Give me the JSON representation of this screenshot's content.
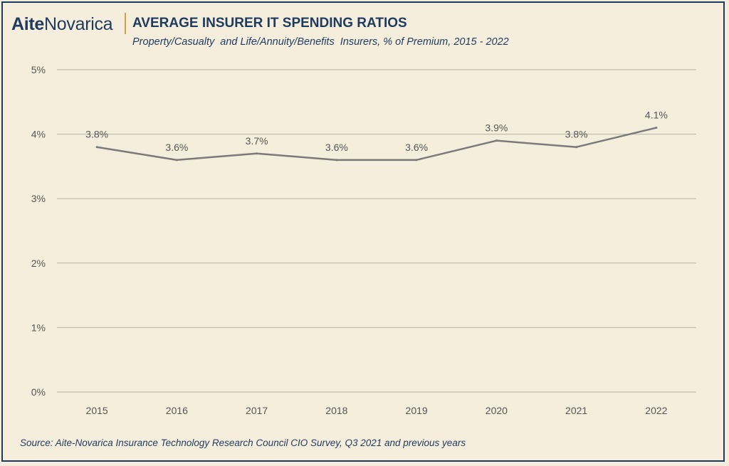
{
  "brand": {
    "part1": "Aite",
    "part2": "Novarica"
  },
  "header": {
    "title": "AVERAGE INSURER IT SPENDING RATIOS",
    "subtitle": "Property/Casualty  and Life/Annuity/Benefits  Insurers, % of Premium, 2015 - 2022"
  },
  "footer": {
    "source": "Source: Aite-Novarica Insurance Technology Research Council CIO Survey, Q3 2021 and previous years"
  },
  "colors": {
    "line": "#7a7a7a",
    "grid": "#b9b3a6",
    "text": "#1f3a5f",
    "accent": "#c9a24a"
  },
  "chart_data": {
    "type": "line",
    "x": [
      "2015",
      "2016",
      "2017",
      "2018",
      "2019",
      "2020",
      "2021",
      "2022"
    ],
    "series": [
      {
        "values": [
          3.8,
          3.6,
          3.7,
          3.6,
          3.6,
          3.9,
          3.8,
          4.1
        ]
      }
    ],
    "data_labels": [
      "3.8%",
      "3.6%",
      "3.7%",
      "3.6%",
      "3.6%",
      "3.9%",
      "3.8%",
      "4.1%"
    ],
    "y_ticks": [
      0,
      1,
      2,
      3,
      4,
      5
    ],
    "y_tick_labels": [
      "0%",
      "1%",
      "2%",
      "3%",
      "4%",
      "5%"
    ],
    "ylim": [
      0,
      5
    ],
    "grid": true,
    "legend": "none"
  }
}
